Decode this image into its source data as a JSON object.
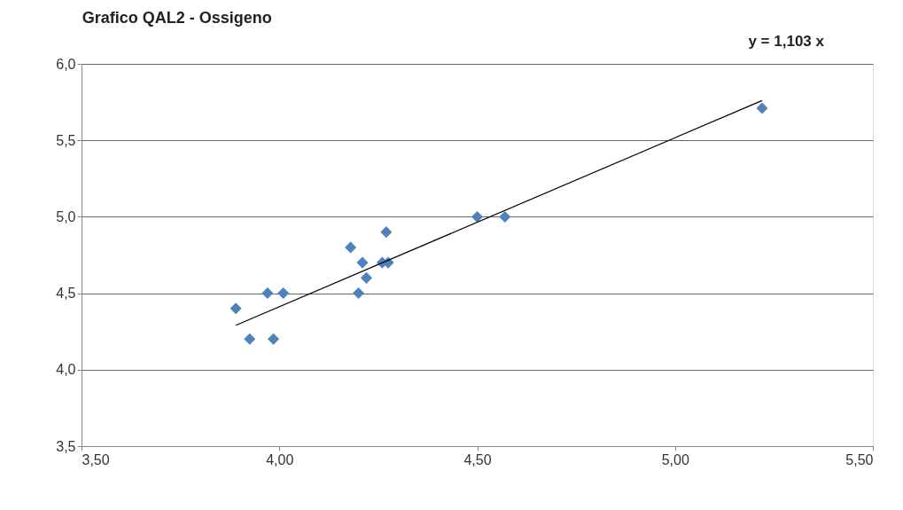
{
  "chart_data": {
    "type": "scatter",
    "title": "Grafico QAL2 - Ossigeno",
    "annotations": [
      "y = 1,103 x"
    ],
    "series": [
      {
        "color": "#4f81bd",
        "marker": "diamond",
        "x": [
          3.89,
          3.925,
          3.97,
          3.985,
          4.01,
          4.18,
          4.27,
          4.21,
          4.22,
          4.2,
          4.26,
          4.275,
          4.5,
          4.57,
          5.22
        ],
        "values": [
          4.4,
          4.2,
          4.5,
          4.2,
          4.5,
          4.8,
          4.9,
          4.7,
          4.6,
          4.5,
          4.7,
          4.7,
          5.0,
          5.0,
          5.71
        ]
      },
      {
        "type": "line",
        "color": "#000000",
        "x": [
          3.89,
          5.22
        ],
        "values": [
          4.29,
          5.76
        ]
      }
    ],
    "xlim": [
      3.5,
      5.5
    ],
    "xticks": [
      {
        "value": 3.5,
        "label": "3,50"
      },
      {
        "value": 4.0,
        "label": "4,00"
      },
      {
        "value": 4.5,
        "label": "4,50"
      },
      {
        "value": 5.0,
        "label": "5,00"
      },
      {
        "value": 5.5,
        "label": "5,50"
      }
    ],
    "ylim": [
      3.5,
      6.0
    ],
    "yticks": [
      {
        "value": 3.5,
        "label": "3,5"
      },
      {
        "value": 4.0,
        "label": "4,0"
      },
      {
        "value": 4.5,
        "label": "4,5"
      },
      {
        "value": 5.0,
        "label": "5,0"
      },
      {
        "value": 5.5,
        "label": "5,5"
      },
      {
        "value": 6.0,
        "label": "6,0"
      }
    ],
    "grid": "y",
    "line_style": "solid"
  }
}
